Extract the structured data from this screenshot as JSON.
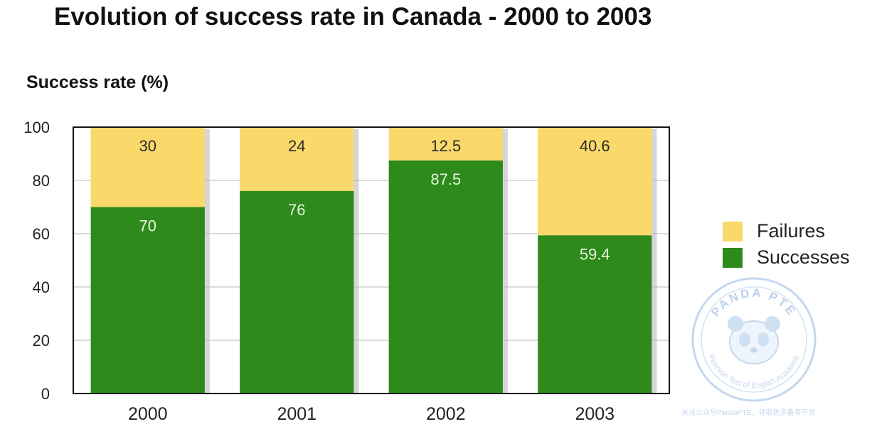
{
  "chart_data": {
    "type": "bar",
    "stacked": true,
    "title": "Evolution of success rate in Canada - 2000 to 2003",
    "ylabel": "Success rate (%)",
    "xlabel": "",
    "categories": [
      "2000",
      "2001",
      "2002",
      "2003"
    ],
    "ylim": [
      0,
      100
    ],
    "yticks": [
      "0",
      "20",
      "40",
      "60",
      "80",
      "100"
    ],
    "grid": true,
    "legend_position": "right",
    "series": [
      {
        "name": "Successes",
        "color": "#2d8a1b",
        "values": [
          70,
          76,
          87.5,
          59.4
        ],
        "labels": [
          "70",
          "76",
          "87.5",
          "59.4"
        ]
      },
      {
        "name": "Failures",
        "color": "#fad86a",
        "values": [
          30,
          24,
          12.5,
          40.6
        ],
        "labels": [
          "30",
          "24",
          "12.5",
          "40.6"
        ]
      }
    ]
  },
  "legend": [
    {
      "name": "Failures",
      "color": "#fad86a"
    },
    {
      "name": "Successes",
      "color": "#2d8a1b"
    }
  ],
  "watermark": {
    "brand": "PANDA PTE",
    "subtitle": "Pearson Test of English Academic",
    "caption": "关注公众号PandaPTE，领取更多备考干货"
  }
}
